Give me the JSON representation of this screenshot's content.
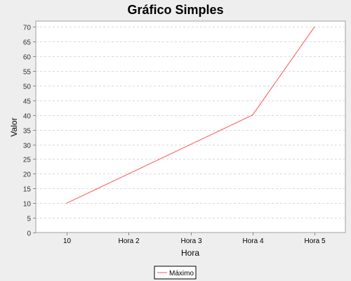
{
  "chart_data": {
    "type": "line",
    "title": "Gráfico Simples",
    "xlabel": "Hora",
    "ylabel": "Valor",
    "categories": [
      "10",
      "Hora 2",
      "Hora 3",
      "Hora 4",
      "Hora 5"
    ],
    "series": [
      {
        "name": "Máximo",
        "values": [
          10,
          20,
          30,
          40,
          70
        ],
        "color": "#ff5555"
      }
    ],
    "ylim": [
      0,
      72
    ],
    "yticks": [
      0,
      5,
      10,
      15,
      20,
      25,
      30,
      35,
      40,
      45,
      50,
      55,
      60,
      65,
      70
    ],
    "grid": true,
    "legend_position": "bottom"
  }
}
